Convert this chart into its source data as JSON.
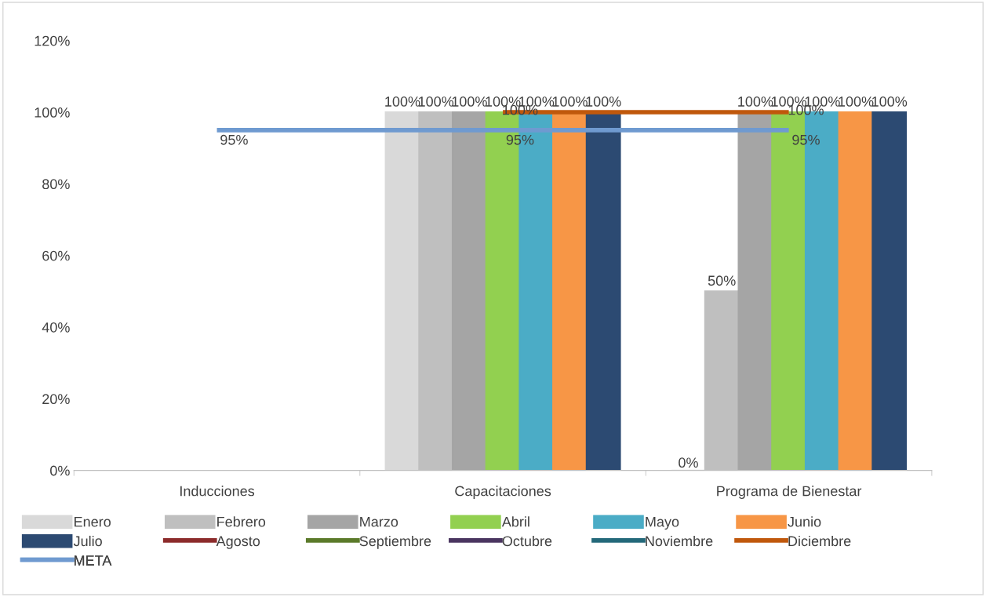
{
  "chart_data": {
    "type": "bar",
    "categories": [
      "Inducciones",
      "Capacitaciones",
      "Programa de Bienestar"
    ],
    "ylim": [
      0,
      120
    ],
    "yticks": [
      {
        "value": 0,
        "label": "0%"
      },
      {
        "value": 20,
        "label": "20%"
      },
      {
        "value": 40,
        "label": "40%"
      },
      {
        "value": 60,
        "label": "60%"
      },
      {
        "value": 80,
        "label": "80%"
      },
      {
        "value": 100,
        "label": "100%"
      },
      {
        "value": 120,
        "label": "120%"
      }
    ],
    "grid": false,
    "legend": "bottom",
    "series": [
      {
        "name": "Enero",
        "color": "#d9d9d9",
        "values": [
          null,
          100,
          0
        ],
        "value_labels": [
          null,
          "100%",
          "0%"
        ]
      },
      {
        "name": "Febrero",
        "color": "#bfbfbf",
        "values": [
          null,
          100,
          50
        ],
        "value_labels": [
          null,
          "100%",
          "50%"
        ]
      },
      {
        "name": "Marzo",
        "color": "#a5a5a5",
        "values": [
          null,
          100,
          100
        ],
        "value_labels": [
          null,
          "100%",
          "100%"
        ]
      },
      {
        "name": "Abril",
        "color": "#92d050",
        "values": [
          null,
          100,
          100
        ],
        "value_labels": [
          null,
          "100%",
          "100%"
        ]
      },
      {
        "name": "Mayo",
        "color": "#4bacc6",
        "values": [
          null,
          100,
          100
        ],
        "value_labels": [
          null,
          "100%",
          "100%"
        ]
      },
      {
        "name": "Junio",
        "color": "#f79646",
        "values": [
          null,
          100,
          100
        ],
        "value_labels": [
          null,
          "100%",
          "100%"
        ]
      },
      {
        "name": "Julio",
        "color": "#2c4a72",
        "values": [
          null,
          100,
          100
        ],
        "value_labels": [
          null,
          "100%",
          "100%"
        ]
      },
      {
        "name": "Agosto",
        "type": "line",
        "color": "#8c2b2b",
        "values": [
          null,
          null,
          null
        ]
      },
      {
        "name": "Septiembre",
        "type": "line",
        "color": "#5b7a2a",
        "values": [
          null,
          null,
          null
        ]
      },
      {
        "name": "Octubre",
        "type": "line",
        "color": "#4a3560",
        "values": [
          null,
          null,
          null
        ]
      },
      {
        "name": "Noviembre",
        "type": "line",
        "color": "#24697a",
        "values": [
          null,
          null,
          null
        ]
      },
      {
        "name": "Diciembre",
        "type": "line",
        "color": "#c0580c",
        "values": [
          null,
          100,
          100
        ],
        "value_labels": [
          null,
          "100%",
          "100%"
        ]
      },
      {
        "name": "META",
        "type": "line",
        "color": "#6f9ad0",
        "values": [
          95,
          95,
          95
        ],
        "value_labels": [
          "95%",
          "95%",
          "95%"
        ]
      }
    ]
  }
}
